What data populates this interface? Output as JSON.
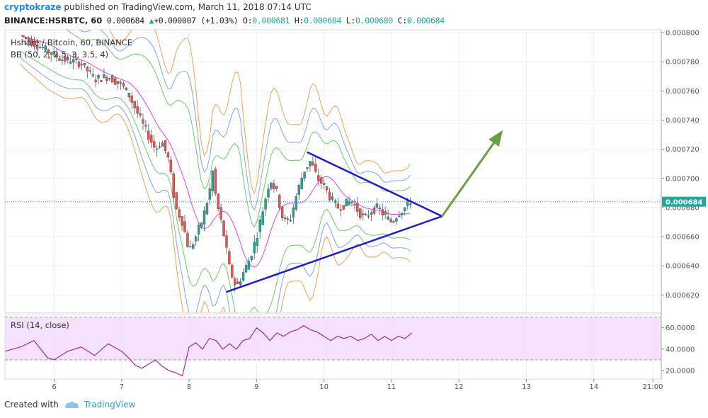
{
  "header": {
    "user": "cryptokraze",
    "published_text": "published on TradingView.com, March 11, 2018 07:14 UTC",
    "symbol": "BINANCE:HSRBTC, 60",
    "last": "0.000684",
    "change": "+0.000007 (+1.03%)",
    "o_label": "O:",
    "o_value": "0.000681",
    "h_label": "H:",
    "h_value": "0.000684",
    "l_label": "L:",
    "l_value": "0.000680",
    "c_label": "C:",
    "c_value": "0.000684"
  },
  "legend": {
    "title": "Hshare / Bitcoin, 60, BINANCE",
    "bb": "BB (50, 2, 2.5, 3, 3.5, 4)",
    "rsi": "RSI (14, close)"
  },
  "footer": {
    "created_with": "Created with",
    "brand": "TradingView"
  },
  "colors": {
    "up": "#26a69a",
    "down": "#ef5350",
    "wedge": "#1d1dcc",
    "arrow": "#6a9e45",
    "rsi": "#9c27b0",
    "bb_mid": "#e040fb",
    "bb_inner": "#66cc66",
    "bb_outer": "#f0a050",
    "bb_band3": "#7fa6e0"
  },
  "chart_data": {
    "type": "candlestick",
    "price_axis": {
      "ylim": [
        0.000608,
        0.000802
      ],
      "ticks": [
        "0.000800",
        "0.000780",
        "0.000760",
        "0.000740",
        "0.000720",
        "0.000700",
        "0.000680",
        "0.000660",
        "0.000640",
        "0.000620"
      ],
      "tick_values": [
        0.0008,
        0.00078,
        0.00076,
        0.00074,
        0.00072,
        0.0007,
        0.00068,
        0.00066,
        0.00064,
        0.00062
      ],
      "last_price": 0.000684,
      "last_price_label": "0.000684"
    },
    "rsi_axis": {
      "ylim": [
        12,
        73
      ],
      "ticks": [
        "60.0000",
        "40.0000",
        "20.0000"
      ],
      "tick_values": [
        60,
        40,
        20
      ],
      "band": [
        30,
        70
      ]
    },
    "x_axis": {
      "range_days": [
        5.27,
        15.0
      ],
      "ticks": [
        {
          "label": "6",
          "day": 6
        },
        {
          "label": "7",
          "day": 7
        },
        {
          "label": "8",
          "day": 8
        },
        {
          "label": "9",
          "day": 9
        },
        {
          "label": "10",
          "day": 10
        },
        {
          "label": "11",
          "day": 11
        },
        {
          "label": "12",
          "day": 12
        },
        {
          "label": "13",
          "day": 13
        },
        {
          "label": "14",
          "day": 14
        },
        {
          "label": "21:00",
          "day": 14.875
        }
      ]
    },
    "candles_path": [
      [
        5.5,
        0.000798
      ],
      [
        5.8,
        0.00079
      ],
      [
        6.1,
        0.000782
      ],
      [
        6.4,
        0.000779
      ],
      [
        6.6,
        0.000768
      ],
      [
        6.8,
        0.00077
      ],
      [
        7.0,
        0.000764
      ],
      [
        7.1,
        0.000758
      ],
      [
        7.3,
        0.000738
      ],
      [
        7.5,
        0.00072
      ],
      [
        7.6,
        0.000725
      ],
      [
        7.7,
        0.000712
      ],
      [
        7.75,
        0.000695
      ],
      [
        7.8,
        0.00068
      ],
      [
        7.9,
        0.00067
      ],
      [
        8.0,
        0.00065
      ],
      [
        8.1,
        0.00066
      ],
      [
        8.2,
        0.000672
      ],
      [
        8.3,
        0.00069
      ],
      [
        8.35,
        0.000705
      ],
      [
        8.4,
        0.000685
      ],
      [
        8.5,
        0.000665
      ],
      [
        8.6,
        0.000638
      ],
      [
        8.7,
        0.000625
      ],
      [
        8.8,
        0.000635
      ],
      [
        8.9,
        0.000645
      ],
      [
        9.0,
        0.00066
      ],
      [
        9.1,
        0.00068
      ],
      [
        9.2,
        0.0007
      ],
      [
        9.3,
        0.00069
      ],
      [
        9.4,
        0.00067
      ],
      [
        9.5,
        0.000672
      ],
      [
        9.6,
        0.00069
      ],
      [
        9.7,
        0.000705
      ],
      [
        9.8,
        0.000712
      ],
      [
        9.9,
        0.0007
      ],
      [
        10.0,
        0.000695
      ],
      [
        10.1,
        0.000686
      ],
      [
        10.2,
        0.00068
      ],
      [
        10.3,
        0.000682
      ],
      [
        10.4,
        0.000685
      ],
      [
        10.5,
        0.000678
      ],
      [
        10.6,
        0.000672
      ],
      [
        10.7,
        0.000678
      ],
      [
        10.8,
        0.00068
      ],
      [
        10.9,
        0.000674
      ],
      [
        11.0,
        0.00067
      ],
      [
        11.1,
        0.000676
      ],
      [
        11.2,
        0.00068
      ],
      [
        11.28,
        0.000684
      ]
    ],
    "rsi_path": [
      [
        5.27,
        38
      ],
      [
        5.5,
        42
      ],
      [
        5.7,
        48
      ],
      [
        5.9,
        32
      ],
      [
        6.0,
        30
      ],
      [
        6.2,
        38
      ],
      [
        6.4,
        42
      ],
      [
        6.6,
        34
      ],
      [
        6.8,
        45
      ],
      [
        7.0,
        38
      ],
      [
        7.1,
        32
      ],
      [
        7.2,
        25
      ],
      [
        7.3,
        22
      ],
      [
        7.4,
        26
      ],
      [
        7.5,
        30
      ],
      [
        7.6,
        24
      ],
      [
        7.7,
        20
      ],
      [
        7.8,
        18
      ],
      [
        7.9,
        15
      ],
      [
        8.0,
        42
      ],
      [
        8.1,
        46
      ],
      [
        8.2,
        40
      ],
      [
        8.3,
        50
      ],
      [
        8.4,
        48
      ],
      [
        8.5,
        40
      ],
      [
        8.6,
        45
      ],
      [
        8.7,
        40
      ],
      [
        8.8,
        48
      ],
      [
        8.9,
        50
      ],
      [
        9.0,
        60
      ],
      [
        9.1,
        55
      ],
      [
        9.2,
        48
      ],
      [
        9.3,
        55
      ],
      [
        9.4,
        52
      ],
      [
        9.5,
        56
      ],
      [
        9.6,
        58
      ],
      [
        9.7,
        62
      ],
      [
        9.8,
        58
      ],
      [
        9.9,
        56
      ],
      [
        10.0,
        52
      ],
      [
        10.1,
        48
      ],
      [
        10.2,
        52
      ],
      [
        10.3,
        50
      ],
      [
        10.4,
        52
      ],
      [
        10.5,
        48
      ],
      [
        10.6,
        50
      ],
      [
        10.7,
        54
      ],
      [
        10.8,
        48
      ],
      [
        10.9,
        52
      ],
      [
        11.0,
        48
      ],
      [
        11.1,
        52
      ],
      [
        11.2,
        50
      ],
      [
        11.3,
        55
      ]
    ],
    "annotations": {
      "wedge_upper": [
        [
          9.75,
          0.000718
        ],
        [
          11.75,
          0.000674
        ]
      ],
      "wedge_lower": [
        [
          8.55,
          0.000622
        ],
        [
          11.75,
          0.000674
        ]
      ],
      "arrow": [
        [
          11.75,
          0.000674
        ],
        [
          12.65,
          0.000733
        ]
      ]
    },
    "grid": true
  }
}
